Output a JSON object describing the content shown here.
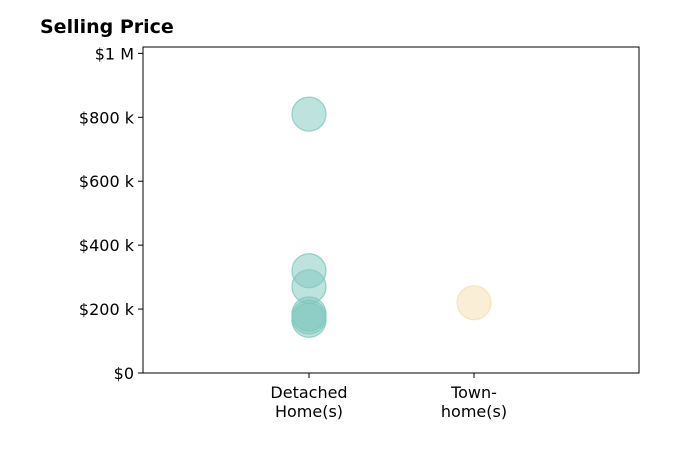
{
  "chart_data": {
    "type": "scatter",
    "title": "Selling Price",
    "categories": [
      "Detached\nHome(s)",
      "Town-\nhome(s)"
    ],
    "y_ticks": [
      {
        "value": 0,
        "label": "$0"
      },
      {
        "value": 200000,
        "label": "$200 k"
      },
      {
        "value": 400000,
        "label": "$400 k"
      },
      {
        "value": 600000,
        "label": "$600 k"
      },
      {
        "value": 800000,
        "label": "$800 k"
      },
      {
        "value": 1000000,
        "label": "$1 M"
      }
    ],
    "ylim": [
      0,
      1020000
    ],
    "series": [
      {
        "category": "Detached\nHome(s)",
        "color": "#7ec8bd",
        "values": [
          810000,
          320000,
          270000,
          185000,
          175000,
          165000
        ]
      },
      {
        "category": "Town-\nhome(s)",
        "color": "#f5deb0",
        "values": [
          220000
        ]
      }
    ],
    "grid": false,
    "legend": "none"
  }
}
